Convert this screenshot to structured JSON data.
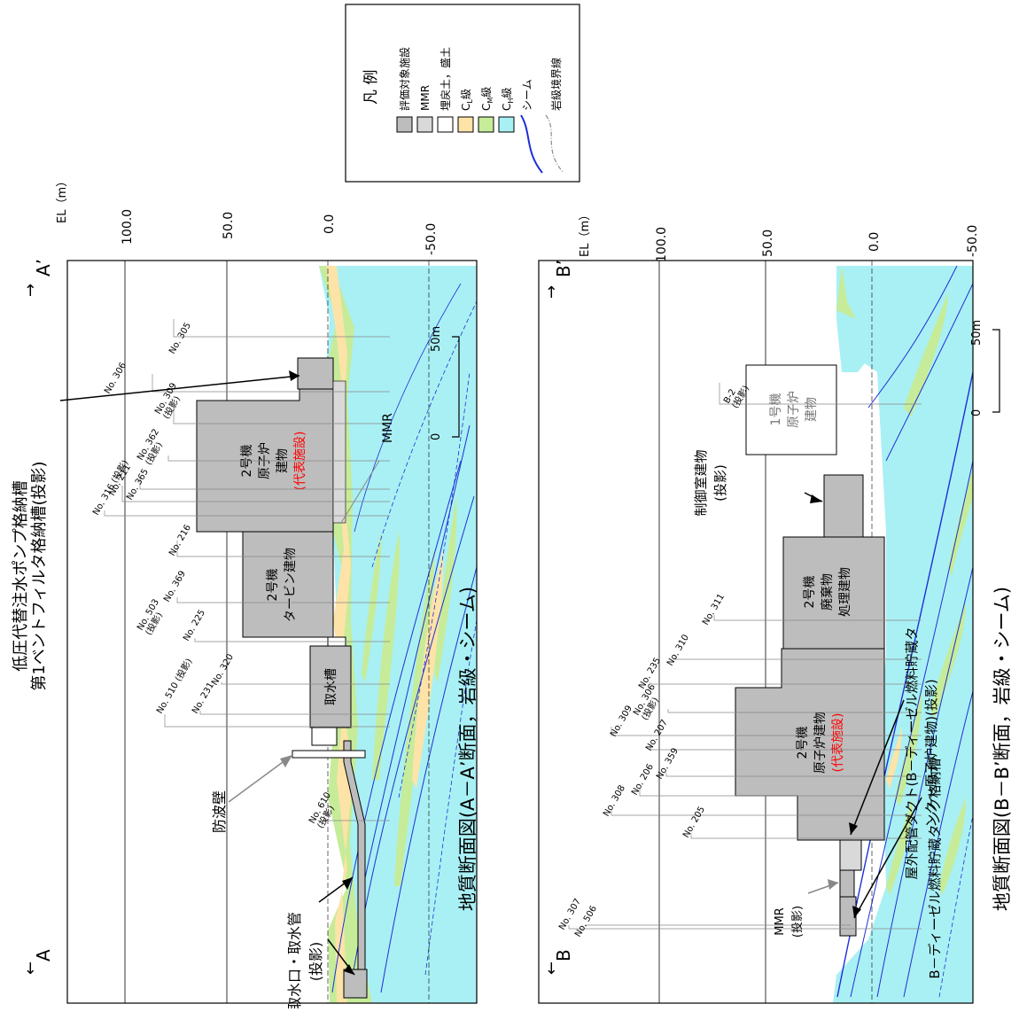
{
  "colors": {
    "facility": "#bdbdbd",
    "mmr": "#d9d9d9",
    "fill_soil": "#ffffff",
    "cl": "#fde3a7",
    "cm": "#c6ec9a",
    "ch": "#a9f0f4",
    "seam": "#1f2fd6",
    "rock_boundary": "#8a8a8a",
    "highlight": "#ff0000",
    "arrow": "#808080"
  },
  "legend": {
    "title": "凡 例",
    "items": [
      {
        "label": "評価対象施設",
        "swatch": "facility"
      },
      {
        "label": "MMR",
        "swatch": "mmr"
      },
      {
        "label": "埋戻土，盛土",
        "swatch": "fill_soil"
      },
      {
        "label": "C",
        "sub": "L",
        "suffix": "級",
        "swatch": "cl"
      },
      {
        "label": "C",
        "sub": "M",
        "suffix": "級",
        "swatch": "cm"
      },
      {
        "label": "C",
        "sub": "H",
        "suffix": "級",
        "swatch": "ch"
      },
      {
        "label": "シーム",
        "swatch": "seam-line"
      },
      {
        "label": "岩級境界線",
        "swatch": "boundary-line"
      }
    ]
  },
  "section_a": {
    "caption": "地質断面図(A－A’断面，岩級・シーム)",
    "left_mark": "A",
    "right_mark": "A’",
    "axis_title": "EL（m）",
    "ticks": [
      "100.0",
      "50.0",
      "0.0",
      "-50.0"
    ],
    "scale_zero": "0",
    "scale_end": "50m",
    "top_label_line1": "低圧代替注水ポンプ格納槽",
    "top_label_line2": "第1ベントフィルタ格納槽(投影)",
    "buildings": {
      "reactor": [
        "2号機",
        "原子炉",
        "建物"
      ],
      "reactor_rep": "(代表施設)",
      "turbine": [
        "2号機",
        "タービン建物"
      ],
      "intake_pit": "取水槽"
    },
    "annotations": {
      "mmr": "MMR",
      "seawall": "防波壁",
      "intake": [
        "取水口・取水管",
        "(投影)"
      ]
    },
    "boreholes": [
      "No. 305",
      "No. 306",
      "No. 309\n(投影)",
      "No. 362\n(投影)",
      "No. 365",
      "No. 211",
      "No. 316 (投影)",
      "No. 216",
      "No. 369",
      "No. 225",
      "No. 503\n(投影)",
      "No. 320",
      "No. 510 (投影)",
      "No. 231",
      "No. 610\n(投影)"
    ]
  },
  "section_b": {
    "caption": "地質断面図(B－B’断面，岩級・シーム)",
    "left_mark": "B",
    "right_mark": "B’",
    "axis_title": "EL（m）",
    "ticks": [
      "100.0",
      "50.0",
      "0.0",
      "-50.0"
    ],
    "scale_zero": "0",
    "scale_end": "50m",
    "buildings": {
      "unit1": [
        "1号機",
        "原子炉",
        "建物"
      ],
      "control": [
        "制御室建物",
        "(投影)"
      ],
      "waste": [
        "2号機",
        "廃棄物",
        "処理建物"
      ],
      "reactor": [
        "2号機",
        "原子炉建物"
      ],
      "reactor_rep": "(代表施設)"
    },
    "annotations": {
      "duct": [
        "屋外配管ダクト(B－ディーゼル燃料貯蔵タ",
        "ンク～原子炉建物)(投影)"
      ],
      "tank": "B－ディーゼル燃料貯蔵タンク格納槽",
      "mmr": [
        "MMR",
        "(投影)"
      ]
    },
    "boreholes": [
      "B-2\n(投影)",
      "No. 311",
      "No. 310",
      "No. 235",
      "No. 306\n(投影)",
      "No. 309",
      "No. 207",
      "No. 359",
      "No. 206",
      "No. 308",
      "No. 205",
      "No. 307",
      "No. 506"
    ]
  }
}
